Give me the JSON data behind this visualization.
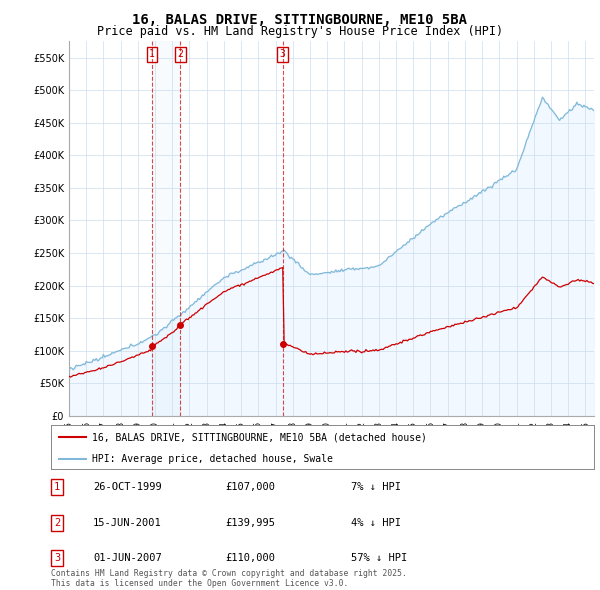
{
  "title": "16, BALAS DRIVE, SITTINGBOURNE, ME10 5BA",
  "subtitle": "Price paid vs. HM Land Registry's House Price Index (HPI)",
  "title_fontsize": 10,
  "subtitle_fontsize": 8.5,
  "ylim": [
    0,
    575000
  ],
  "yticks": [
    0,
    50000,
    100000,
    150000,
    200000,
    250000,
    300000,
    350000,
    400000,
    450000,
    500000,
    550000
  ],
  "ytick_labels": [
    "£0",
    "£50K",
    "£100K",
    "£150K",
    "£200K",
    "£250K",
    "£300K",
    "£350K",
    "£400K",
    "£450K",
    "£500K",
    "£550K"
  ],
  "hpi_color": "#7fb8d8",
  "hpi_fill_color": "#ddeeff",
  "red_color": "#cc0000",
  "background_color": "#ffffff",
  "grid_color": "#ccddee",
  "transactions": [
    {
      "date": 1999.82,
      "price": 107000,
      "label": "1"
    },
    {
      "date": 2001.46,
      "price": 139995,
      "label": "2"
    },
    {
      "date": 2007.42,
      "price": 110000,
      "label": "3"
    }
  ],
  "transaction_table": [
    {
      "num": "1",
      "date": "26-OCT-1999",
      "price": "£107,000",
      "hpi": "7% ↓ HPI"
    },
    {
      "num": "2",
      "date": "15-JUN-2001",
      "price": "£139,995",
      "hpi": "4% ↓ HPI"
    },
    {
      "num": "3",
      "date": "01-JUN-2007",
      "price": "£110,000",
      "hpi": "57% ↓ HPI"
    }
  ],
  "legend_red": "16, BALAS DRIVE, SITTINGBOURNE, ME10 5BA (detached house)",
  "legend_blue": "HPI: Average price, detached house, Swale",
  "footnote": "Contains HM Land Registry data © Crown copyright and database right 2025.\nThis data is licensed under the Open Government Licence v3.0.",
  "xmin": 1995,
  "xmax": 2025.5
}
